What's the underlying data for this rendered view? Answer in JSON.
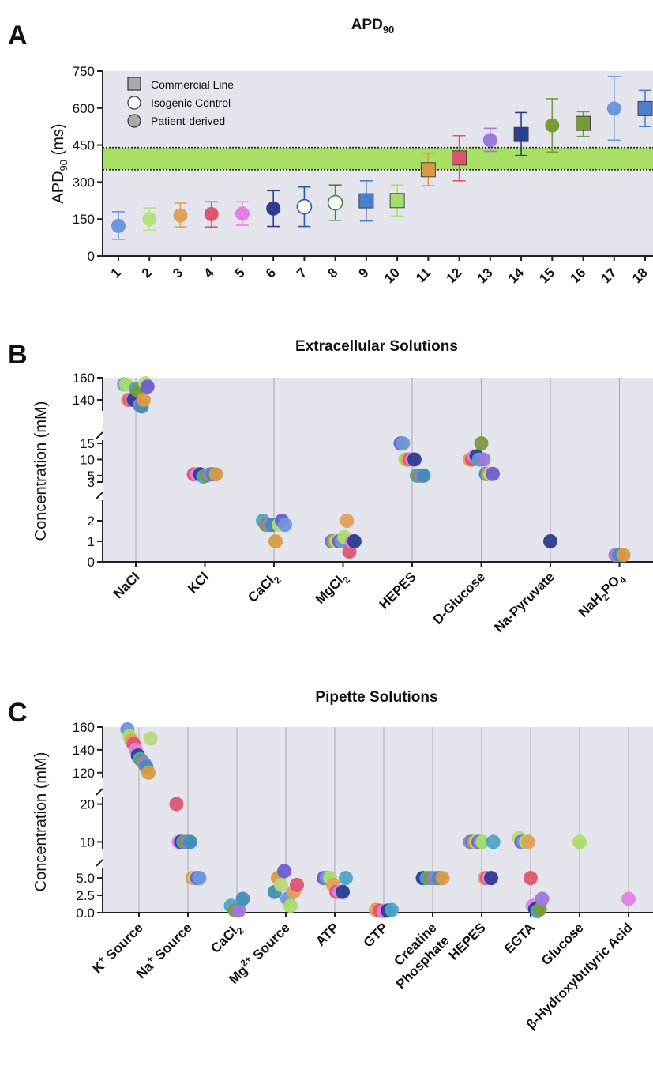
{
  "panels": {
    "a": {
      "label": "A",
      "title": "APD",
      "title_sub": "90"
    },
    "b": {
      "label": "B",
      "title": "Extracellular Solutions"
    },
    "c": {
      "label": "C",
      "title": "Pipette Solutions"
    }
  },
  "chart_data": [
    {
      "type": "scatter",
      "title": "APD90",
      "ylabel": "APD90 (ms)",
      "ylim": [
        0,
        750
      ],
      "yticks": [
        0,
        150,
        300,
        450,
        600,
        750
      ],
      "grid": false,
      "legend_position": "top-left",
      "legend": [
        {
          "label": "Commercial Line",
          "marker": "square"
        },
        {
          "label": "Isogenic Control",
          "marker": "open-circle"
        },
        {
          "label": "Patient-derived",
          "marker": "circle"
        }
      ],
      "reference_band": {
        "low": 350,
        "high": 440,
        "color": "#a6df63"
      },
      "categories": [
        "1",
        "2",
        "3",
        "4",
        "5",
        "6",
        "7",
        "8",
        "9",
        "10",
        "11",
        "12",
        "13",
        "14",
        "15",
        "16",
        "17",
        "18"
      ],
      "points": [
        {
          "x": "1",
          "mean": 122,
          "low": 68,
          "high": 180,
          "marker": "circle",
          "color": "#6e97d9"
        },
        {
          "x": "2",
          "mean": 150,
          "low": 105,
          "high": 195,
          "marker": "circle",
          "color": "#b8e07d"
        },
        {
          "x": "3",
          "mean": 165,
          "low": 118,
          "high": 215,
          "marker": "circle",
          "color": "#e0a058"
        },
        {
          "x": "4",
          "mean": 170,
          "low": 118,
          "high": 220,
          "marker": "circle",
          "color": "#dd5571"
        },
        {
          "x": "5",
          "mean": 172,
          "low": 125,
          "high": 220,
          "marker": "circle",
          "color": "#e17fe5"
        },
        {
          "x": "6",
          "mean": 193,
          "low": 120,
          "high": 265,
          "marker": "circle",
          "color": "#2b3e8f"
        },
        {
          "x": "7",
          "mean": 200,
          "low": 120,
          "high": 280,
          "marker": "open-circle",
          "color": "#2b5aa6"
        },
        {
          "x": "8",
          "mean": 216,
          "low": 145,
          "high": 288,
          "marker": "open-circle",
          "color": "#3f8a3f"
        },
        {
          "x": "9",
          "mean": 224,
          "low": 142,
          "high": 305,
          "marker": "square",
          "color": "#4d7fcf"
        },
        {
          "x": "10",
          "mean": 225,
          "low": 162,
          "high": 288,
          "marker": "square",
          "color": "#a9dd6a"
        },
        {
          "x": "11",
          "mean": 350,
          "low": 285,
          "high": 418,
          "marker": "square",
          "color": "#d99a45"
        },
        {
          "x": "12",
          "mean": 398,
          "low": 305,
          "high": 488,
          "marker": "square",
          "color": "#dd5571"
        },
        {
          "x": "13",
          "mean": 470,
          "low": 425,
          "high": 518,
          "marker": "circle",
          "color": "#9c78dc"
        },
        {
          "x": "14",
          "mean": 493,
          "low": 408,
          "high": 582,
          "marker": "square",
          "color": "#2b3e8f"
        },
        {
          "x": "15",
          "mean": 530,
          "low": 422,
          "high": 638,
          "marker": "circle",
          "color": "#7a9a3a"
        },
        {
          "x": "16",
          "mean": 538,
          "low": 485,
          "high": 585,
          "marker": "square",
          "color": "#7a9a3a"
        },
        {
          "x": "17",
          "mean": 598,
          "low": 470,
          "high": 728,
          "marker": "circle",
          "color": "#6e97d9"
        },
        {
          "x": "18",
          "mean": 598,
          "low": 525,
          "high": 672,
          "marker": "square",
          "color": "#4d7fcf"
        }
      ]
    },
    {
      "type": "scatter",
      "title": "Extracellular Solutions",
      "ylabel": "Concentration (mM)",
      "grid": true,
      "broken_y_axis_segments": [
        {
          "range": [
            0,
            3
          ],
          "ticks": [
            0,
            1,
            2,
            3
          ]
        },
        {
          "range": [
            3,
            16
          ],
          "ticks": [
            5,
            10,
            15
          ]
        },
        {
          "range": [
            130,
            160
          ],
          "ticks": [
            140,
            160
          ]
        }
      ],
      "categories": [
        "NaCl",
        "KCl",
        "CaCl",
        "MgCl",
        "HEPES",
        "D-Glucose",
        "Na-Pyruvate",
        "NaH"
      ],
      "category_subscripts": [
        "",
        "",
        "2",
        "2",
        "",
        "",
        "",
        "2"
      ],
      "category_suffixes": [
        "",
        "",
        "",
        "",
        "",
        "",
        "",
        "PO"
      ],
      "category_suffix_subscripts": [
        "",
        "",
        "",
        "",
        "",
        "",
        "",
        "4"
      ],
      "series_points": [
        {
          "category": "NaCl",
          "values": [
            154,
            154,
            140,
            140,
            140,
            140,
            150,
            148,
            135,
            134,
            140,
            155,
            152
          ]
        },
        {
          "category": "KCl",
          "values": [
            5.4,
            5.4,
            5.4,
            4.7,
            5.0,
            5.4,
            5.4,
            5.4
          ]
        },
        {
          "category": "CaCl",
          "values": [
            2.0,
            1.8,
            1.8,
            1.8,
            1.0,
            1.8,
            2.0,
            1.8
          ]
        },
        {
          "category": "MgCl",
          "values": [
            1.0,
            1.0,
            1.0,
            1.0,
            1.0,
            1.2,
            2.0,
            0.5,
            1.0,
            1.0
          ]
        },
        {
          "category": "HEPES",
          "values": [
            15,
            15,
            10,
            10,
            10,
            10,
            10,
            5,
            5,
            5,
            5
          ]
        },
        {
          "category": "D-Glucose",
          "values": [
            10,
            10,
            11,
            11,
            10,
            15,
            10,
            5.5,
            5.5,
            5.5,
            5.5
          ]
        },
        {
          "category": "Na-Pyruvate",
          "values": [
            1.0
          ]
        },
        {
          "category": "NaH",
          "values": [
            0.33,
            0.33,
            0.33
          ]
        }
      ]
    },
    {
      "type": "scatter",
      "title": "Pipette Solutions",
      "ylabel": "Concentration (mM)",
      "grid": true,
      "broken_y_axis_segments": [
        {
          "range": [
            0,
            6.5
          ],
          "ticks": [
            0.0,
            2.5,
            5.0
          ]
        },
        {
          "range": [
            8,
            22
          ],
          "ticks": [
            10,
            20
          ]
        },
        {
          "range": [
            115,
            160
          ],
          "ticks": [
            120,
            140,
            160
          ]
        }
      ],
      "categories": [
        "K",
        "Na",
        "CaCl",
        "Mg",
        "ATP",
        "GTP",
        "Creatine",
        "HEPES",
        "EGTA",
        "Glucose",
        "β-Hydroxybutyric Acid"
      ],
      "category_superscripts": [
        "+",
        "+",
        "",
        "2+",
        "",
        "",
        "",
        "",
        "",
        "",
        ""
      ],
      "category_subscripts": [
        "",
        "",
        "2",
        "",
        "",
        "",
        "",
        "",
        "",
        "",
        ""
      ],
      "category_suffixes": [
        " Source",
        " Source",
        "",
        " Source",
        "",
        "",
        "",
        "",
        "",
        "",
        ""
      ],
      "category_second_line": [
        "",
        "",
        "",
        "",
        "",
        "",
        "Phosphate",
        "",
        "",
        "",
        ""
      ],
      "series_points": [
        {
          "category": "K",
          "values": [
            158,
            152,
            148,
            145,
            140,
            135,
            132,
            130,
            128,
            125,
            120,
            150
          ]
        },
        {
          "category": "Na",
          "values": [
            20,
            10,
            10,
            10,
            10,
            10,
            10,
            5,
            5,
            5,
            5
          ]
        },
        {
          "category": "CaCl",
          "values": [
            1.0,
            0.3,
            0.3,
            2.0
          ]
        },
        {
          "category": "Mg",
          "values": [
            3.0,
            5.0,
            4.0,
            6.0,
            2.0,
            1.0,
            3.0,
            4.0
          ]
        },
        {
          "category": "ATP",
          "values": [
            5.0,
            5.0,
            5.0,
            4.0,
            3.0,
            3.0,
            3.0,
            5.0
          ]
        },
        {
          "category": "GTP",
          "values": [
            0.4,
            0.3,
            0.2,
            0.3,
            0.4
          ]
        },
        {
          "category": "Creatine",
          "values": [
            5.0,
            5.0,
            5.0,
            5.0,
            5.0,
            5.0
          ]
        },
        {
          "category": "HEPES",
          "values": [
            10,
            10,
            10,
            10,
            10,
            10,
            10,
            5,
            5,
            5,
            5,
            10
          ]
        },
        {
          "category": "EGTA",
          "values": [
            11,
            10,
            10,
            10,
            10,
            5.0,
            1.0,
            0.5,
            0.2,
            0.5,
            2.0
          ]
        },
        {
          "category": "Glucose",
          "values": [
            10
          ]
        },
        {
          "category": "β-Hydroxybutyric Acid",
          "values": [
            2.0
          ]
        }
      ]
    }
  ]
}
